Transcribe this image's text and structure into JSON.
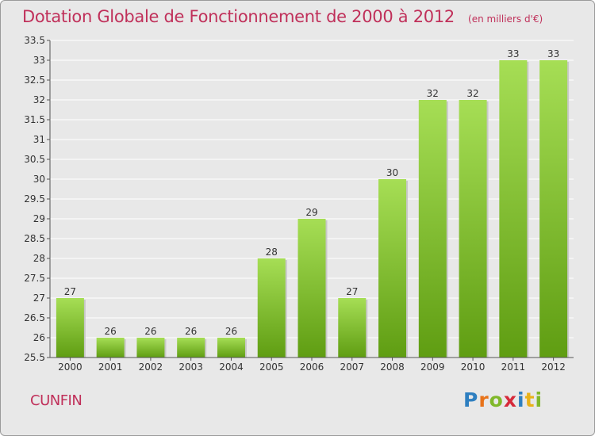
{
  "header": {
    "title": "Dotation Globale de Fonctionnement de 2000 à 2012",
    "subtitle": "(en milliers d'€)"
  },
  "commune": "CUNFIN",
  "logo": {
    "letters": [
      "P",
      "r",
      "o",
      "x",
      "i",
      "t",
      "i"
    ],
    "colors": [
      "#2e7fc0",
      "#e8731a",
      "#80b82a",
      "#d62a3a",
      "#2e7fc0",
      "#e8b21a",
      "#80b82a"
    ]
  },
  "chart_data": {
    "type": "bar",
    "categories": [
      "2000",
      "2001",
      "2002",
      "2003",
      "2004",
      "2005",
      "2006",
      "2007",
      "2008",
      "2009",
      "2010",
      "2011",
      "2012"
    ],
    "values": [
      27,
      26,
      26,
      26,
      26,
      28,
      29,
      27,
      30,
      32,
      32,
      33,
      33
    ],
    "data_labels": [
      "27",
      "26",
      "26",
      "26",
      "26",
      "28",
      "29",
      "27",
      "30",
      "32",
      "32",
      "33",
      "33"
    ],
    "yticks": [
      "25.5",
      "26",
      "26.5",
      "27",
      "27.5",
      "28",
      "28.5",
      "29",
      "29.5",
      "30",
      "30.5",
      "31",
      "31.5",
      "32",
      "32.5",
      "33",
      "33.5"
    ],
    "ylim": [
      25.5,
      33.5
    ],
    "grid": true,
    "colors": {
      "bar_light": "#a6de55",
      "bar_dark": "#5f9d12",
      "grid": "#ffffff",
      "axis": "#555555",
      "label": "#333333"
    }
  }
}
